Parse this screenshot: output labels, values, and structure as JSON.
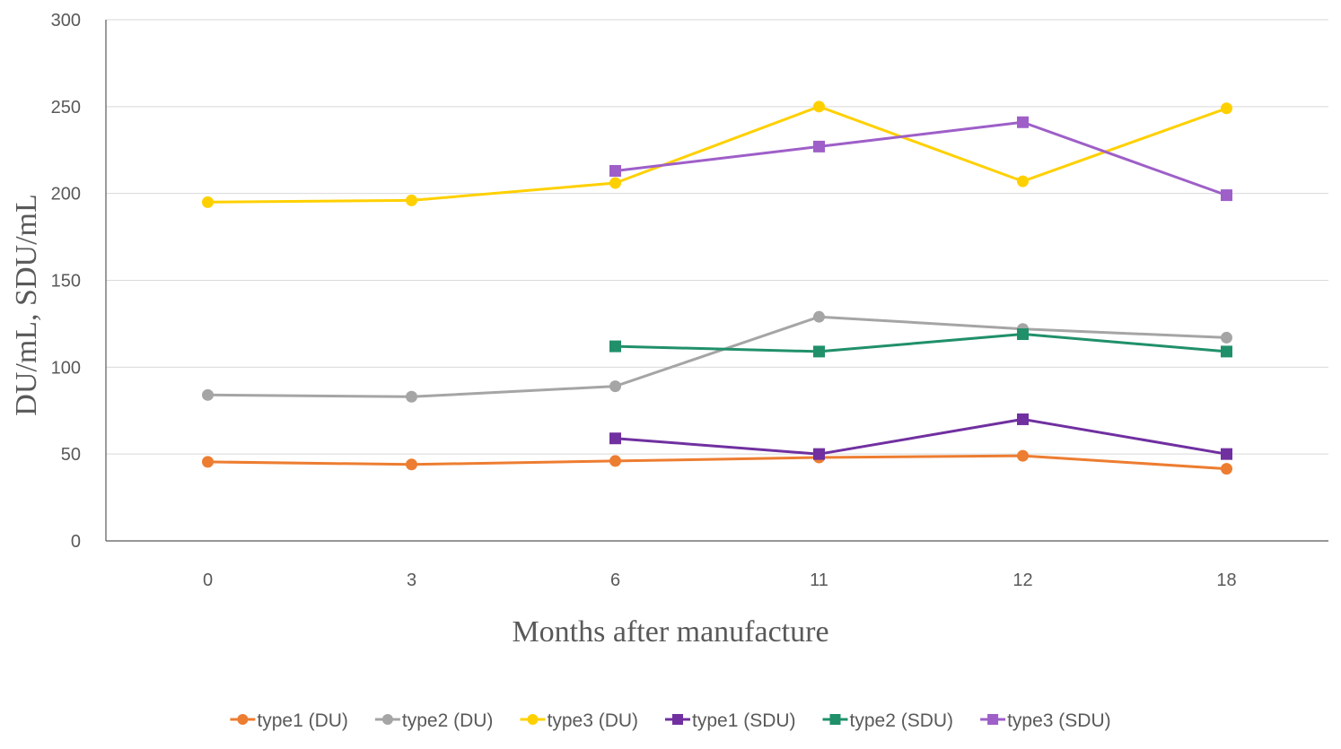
{
  "chart_data": {
    "type": "line",
    "title": "",
    "xlabel": "Months after manufacture",
    "ylabel": "DU/mL, SDU/mL",
    "categories": [
      "0",
      "3",
      "6",
      "11",
      "12",
      "18"
    ],
    "ylim": [
      0,
      300
    ],
    "yticks": [
      0,
      50,
      100,
      150,
      200,
      250,
      300
    ],
    "grid": true,
    "legend_position": "bottom",
    "series": [
      {
        "name": "type1 (DU)",
        "color": "#ED7D31",
        "marker": "circle",
        "values": [
          45.5,
          44,
          46,
          48,
          49,
          41.5
        ]
      },
      {
        "name": "type2 (DU)",
        "color": "#A5A5A5",
        "marker": "circle",
        "values": [
          84,
          83,
          89,
          129,
          122,
          117
        ]
      },
      {
        "name": "type3 (DU)",
        "color": "#FFD000",
        "marker": "circle",
        "values": [
          195,
          196,
          206,
          250,
          207,
          249
        ]
      },
      {
        "name": "type1 (SDU)",
        "color": "#7030A0",
        "marker": "square",
        "values": [
          null,
          null,
          59,
          50,
          70,
          50
        ]
      },
      {
        "name": "type2 (SDU)",
        "color": "#20906A",
        "marker": "square",
        "values": [
          null,
          null,
          112,
          109,
          119,
          109
        ]
      },
      {
        "name": "type3 (SDU)",
        "color": "#9E5FC8",
        "marker": "square",
        "values": [
          null,
          null,
          213,
          227,
          241,
          199
        ]
      }
    ]
  }
}
